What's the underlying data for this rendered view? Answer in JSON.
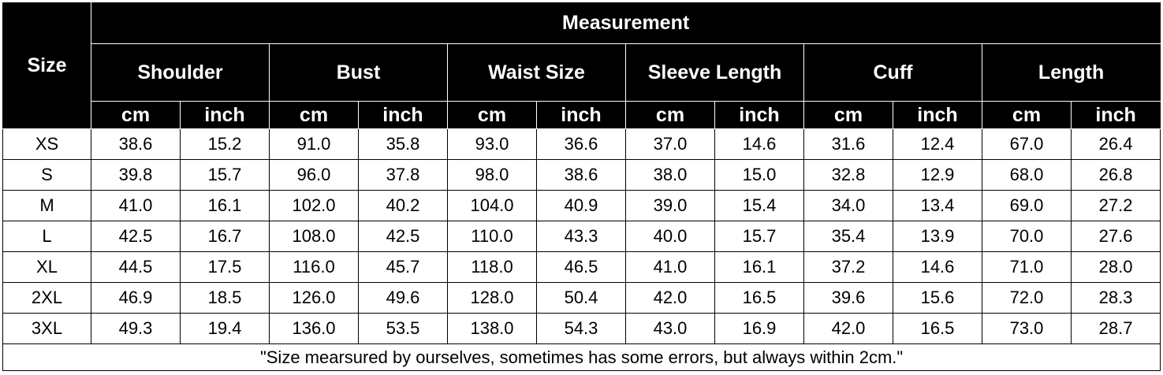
{
  "table": {
    "corner": "Size",
    "title": "Measurement",
    "groups": [
      {
        "name": "Shoulder",
        "units": [
          "cm",
          "inch"
        ]
      },
      {
        "name": "Bust",
        "units": [
          "cm",
          "inch"
        ]
      },
      {
        "name": "Waist Size",
        "units": [
          "cm",
          "inch"
        ]
      },
      {
        "name": "Sleeve Length",
        "units": [
          "cm",
          "inch"
        ]
      },
      {
        "name": "Cuff",
        "units": [
          "cm",
          "inch"
        ]
      },
      {
        "name": "Length",
        "units": [
          "cm",
          "inch"
        ]
      }
    ],
    "rows": [
      {
        "size": "XS",
        "values": [
          "38.6",
          "15.2",
          "91.0",
          "35.8",
          "93.0",
          "36.6",
          "37.0",
          "14.6",
          "31.6",
          "12.4",
          "67.0",
          "26.4"
        ]
      },
      {
        "size": "S",
        "values": [
          "39.8",
          "15.7",
          "96.0",
          "37.8",
          "98.0",
          "38.6",
          "38.0",
          "15.0",
          "32.8",
          "12.9",
          "68.0",
          "26.8"
        ]
      },
      {
        "size": "M",
        "values": [
          "41.0",
          "16.1",
          "102.0",
          "40.2",
          "104.0",
          "40.9",
          "39.0",
          "15.4",
          "34.0",
          "13.4",
          "69.0",
          "27.2"
        ]
      },
      {
        "size": "L",
        "values": [
          "42.5",
          "16.7",
          "108.0",
          "42.5",
          "110.0",
          "43.3",
          "40.0",
          "15.7",
          "35.4",
          "13.9",
          "70.0",
          "27.6"
        ]
      },
      {
        "size": "XL",
        "values": [
          "44.5",
          "17.5",
          "116.0",
          "45.7",
          "118.0",
          "46.5",
          "41.0",
          "16.1",
          "37.2",
          "14.6",
          "71.0",
          "28.0"
        ]
      },
      {
        "size": "2XL",
        "values": [
          "46.9",
          "18.5",
          "126.0",
          "49.6",
          "128.0",
          "50.4",
          "42.0",
          "16.5",
          "39.6",
          "15.6",
          "72.0",
          "28.3"
        ]
      },
      {
        "size": "3XL",
        "values": [
          "49.3",
          "19.4",
          "136.0",
          "53.5",
          "138.0",
          "54.3",
          "43.0",
          "16.9",
          "42.0",
          "16.5",
          "73.0",
          "28.7"
        ]
      }
    ],
    "note": "\"Size mearsured by ourselves, sometimes has some errors, but always within 2cm.\""
  }
}
